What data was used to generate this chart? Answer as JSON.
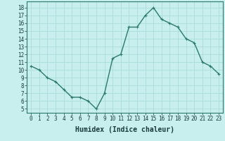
{
  "x": [
    0,
    1,
    2,
    3,
    4,
    5,
    6,
    7,
    8,
    9,
    10,
    11,
    12,
    13,
    14,
    15,
    16,
    17,
    18,
    19,
    20,
    21,
    22,
    23
  ],
  "y": [
    10.5,
    10.0,
    9.0,
    8.5,
    7.5,
    6.5,
    6.5,
    6.0,
    5.0,
    7.0,
    11.5,
    12.0,
    15.5,
    15.5,
    17.0,
    18.0,
    16.5,
    16.0,
    15.5,
    14.0,
    13.5,
    11.0,
    10.5,
    9.5
  ],
  "line_color": "#2a7a6a",
  "marker_color": "#2a7a6a",
  "bg_color": "#c8eeee",
  "grid_color": "#aadddd",
  "xlabel": "Humidex (Indice chaleur)",
  "xlabel_fontsize": 7,
  "xlim": [
    -0.5,
    23.5
  ],
  "ylim": [
    4.5,
    18.8
  ],
  "yticks": [
    5,
    6,
    7,
    8,
    9,
    10,
    11,
    12,
    13,
    14,
    15,
    16,
    17,
    18
  ],
  "xticks": [
    0,
    1,
    2,
    3,
    4,
    5,
    6,
    7,
    8,
    9,
    10,
    11,
    12,
    13,
    14,
    15,
    16,
    17,
    18,
    19,
    20,
    21,
    22,
    23
  ],
  "tick_fontsize": 5.5,
  "line_width": 1.0,
  "marker_size": 2.5
}
